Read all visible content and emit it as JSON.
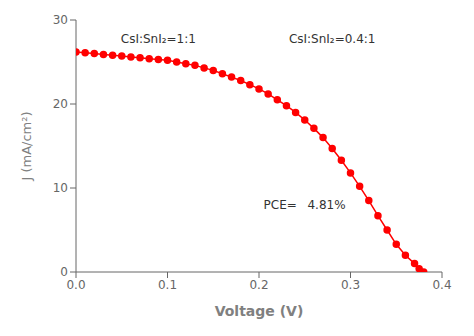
{
  "chart_data": {
    "type": "line",
    "x": [
      0.0,
      0.01,
      0.02,
      0.03,
      0.04,
      0.05,
      0.06,
      0.07,
      0.08,
      0.09,
      0.1,
      0.11,
      0.12,
      0.13,
      0.14,
      0.15,
      0.16,
      0.17,
      0.18,
      0.19,
      0.2,
      0.21,
      0.22,
      0.23,
      0.24,
      0.25,
      0.26,
      0.27,
      0.28,
      0.29,
      0.3,
      0.31,
      0.32,
      0.33,
      0.34,
      0.35,
      0.36,
      0.37,
      0.375,
      0.38
    ],
    "values": [
      26.2,
      26.1,
      26.0,
      25.9,
      25.8,
      25.7,
      25.6,
      25.5,
      25.4,
      25.3,
      25.2,
      25.0,
      24.8,
      24.6,
      24.3,
      24.0,
      23.6,
      23.2,
      22.8,
      22.3,
      21.8,
      21.2,
      20.5,
      19.8,
      19.0,
      18.1,
      17.1,
      16.0,
      14.7,
      13.3,
      11.8,
      10.2,
      8.5,
      6.7,
      5.0,
      3.3,
      2.0,
      1.0,
      0.4,
      0.0
    ],
    "color": "#FF0000",
    "marker": "circle",
    "xlabel": "Voltage (V)",
    "ylabel": "J (mA/cm²)",
    "xlim": [
      0.0,
      0.4
    ],
    "ylim": [
      0,
      30
    ],
    "xticks": [
      {
        "value": 0.0,
        "label": "0.0"
      },
      0.1,
      0.2,
      0.3,
      0.4
    ],
    "yticks": [
      0,
      10,
      20,
      30
    ],
    "annotations": [
      {
        "text": "CsI:SnI₂=1:1",
        "x": 0.09,
        "y": 27.8,
        "align": "center"
      },
      {
        "text": "CsI:SnI₂=0.4:1",
        "x": 0.28,
        "y": 27.8,
        "align": "center"
      },
      {
        "text": "PCE=",
        "x": 0.205,
        "y": 8.0,
        "align": "left"
      },
      {
        "text": "4.81%",
        "x": 0.253,
        "y": 8.0,
        "align": "left"
      }
    ]
  }
}
